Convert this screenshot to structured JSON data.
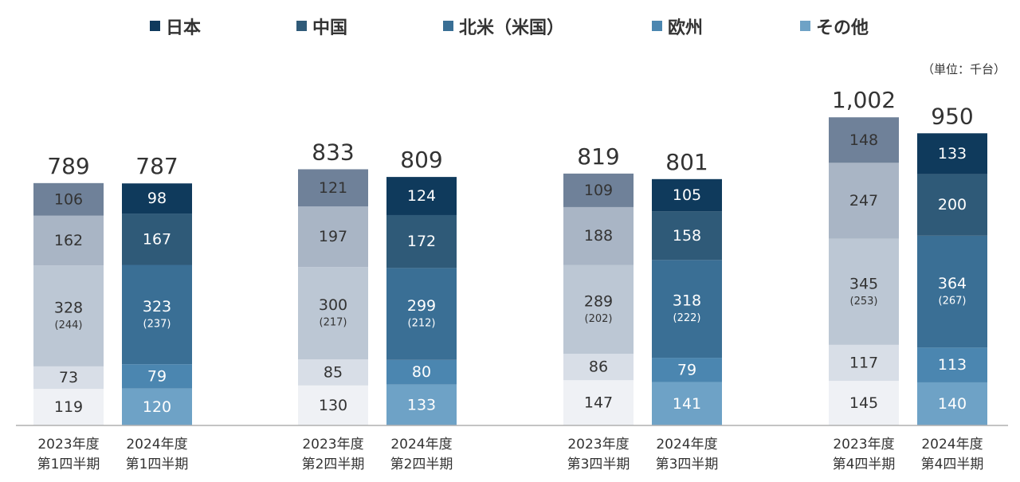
{
  "unit_label": "（単位：千台）",
  "legend": [
    {
      "label": "日本",
      "color": "#0f3a5c"
    },
    {
      "label": "中国",
      "color": "#2f5a78"
    },
    {
      "label": "北米（米国）",
      "color": "#3a6f95"
    },
    {
      "label": "欧州",
      "color": "#4b86b0"
    },
    {
      "label": "その他",
      "color": "#6ea2c6"
    }
  ],
  "chart_data": {
    "type": "bar",
    "stacked": true,
    "categories": [
      [
        "2023年度",
        "第1四半期"
      ],
      [
        "2024年度",
        "第1四半期"
      ],
      [
        "2023年度",
        "第2四半期"
      ],
      [
        "2024年度",
        "第2四半期"
      ],
      [
        "2023年度",
        "第3四半期"
      ],
      [
        "2024年度",
        "第3四半期"
      ],
      [
        "2023年度",
        "第4四半期"
      ],
      [
        "2024年度",
        "第4四半期"
      ]
    ],
    "totals": [
      "789",
      "787",
      "833",
      "809",
      "819",
      "801",
      "1,002",
      "950"
    ],
    "total_values": [
      789,
      787,
      833,
      809,
      819,
      801,
      1002,
      950
    ],
    "series": [
      {
        "name": "その他",
        "values": [
          119,
          120,
          130,
          133,
          147,
          141,
          145,
          140
        ]
      },
      {
        "name": "欧州",
        "values": [
          73,
          79,
          85,
          80,
          86,
          79,
          117,
          113
        ]
      },
      {
        "name": "北米（米国）",
        "values": [
          328,
          323,
          300,
          299,
          289,
          318,
          345,
          364
        ],
        "sub_values": [
          "(244)",
          "(237)",
          "(217)",
          "(212)",
          "(202)",
          "(222)",
          "(253)",
          "(267)"
        ]
      },
      {
        "name": "中国",
        "values": [
          162,
          167,
          197,
          172,
          188,
          158,
          247,
          200
        ]
      },
      {
        "name": "日本",
        "values": [
          106,
          98,
          121,
          124,
          109,
          105,
          148,
          133
        ]
      }
    ],
    "colors_current": [
      "#6ea2c6",
      "#4b86b0",
      "#3a6f95",
      "#2f5a78",
      "#0f3a5c"
    ],
    "colors_previous": [
      "#eff1f5",
      "#d8dee7",
      "#bcc7d4",
      "#a9b5c5",
      "#6f8199"
    ],
    "text_current": "#ffffff",
    "text_previous": "#333333",
    "ylim": [
      0,
      1080
    ]
  }
}
